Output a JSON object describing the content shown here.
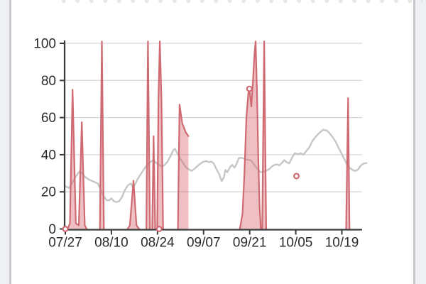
{
  "page": {
    "outer_bg": "#eef0f3",
    "card_bg": "#ffffff",
    "card_border": "#c9c6cc",
    "note_top_clipped_content": "faint dotted remnants of content scrolled above"
  },
  "chart_data": {
    "type": "line",
    "title": "",
    "xlabel": "",
    "ylabel": "",
    "grid": true,
    "legend": "none",
    "ylim": [
      0,
      100
    ],
    "x_unit": "days since 07/27",
    "x_visible_range_days": [
      0,
      90.3
    ],
    "x_ticks": [
      {
        "label": "07/27",
        "day": 0
      },
      {
        "label": "08/10",
        "day": 14
      },
      {
        "label": "08/24",
        "day": 28
      },
      {
        "label": "09/07",
        "day": 42
      },
      {
        "label": "09/21",
        "day": 56
      },
      {
        "label": "10/05",
        "day": 70
      },
      {
        "label": "10/19",
        "day": 84
      }
    ],
    "y_ticks": [
      {
        "label": "0",
        "value": 0
      },
      {
        "label": "20",
        "value": 20
      },
      {
        "label": "40",
        "value": 40
      },
      {
        "label": "60",
        "value": 60
      },
      {
        "label": "80",
        "value": 80
      },
      {
        "label": "100",
        "value": 100
      }
    ],
    "axis_color": "#3a3a3a",
    "grid_color": "#d8d8da",
    "label_color": "#2b2b2b",
    "label_font_px": 19,
    "series": [
      {
        "name": "smoothed-baseline",
        "type": "line",
        "color": "#c4c8c4",
        "width": 2.4,
        "points": [
          [
            0,
            23
          ],
          [
            0.6,
            22.5
          ],
          [
            1.1,
            22
          ],
          [
            1.7,
            23.5
          ],
          [
            2.6,
            26.5
          ],
          [
            3.5,
            29
          ],
          [
            4.3,
            31
          ],
          [
            5.2,
            30
          ],
          [
            6.0,
            28
          ],
          [
            7.3,
            26.5
          ],
          [
            8.6,
            25.5
          ],
          [
            9.9,
            24.5
          ],
          [
            10.8,
            21
          ],
          [
            11.7,
            17.5
          ],
          [
            12.5,
            15.5
          ],
          [
            13.4,
            15.5
          ],
          [
            14.0,
            16.5
          ],
          [
            14.7,
            15
          ],
          [
            15.5,
            14.5
          ],
          [
            16.4,
            15
          ],
          [
            17.3,
            17.5
          ],
          [
            18.1,
            21
          ],
          [
            19.0,
            23.5
          ],
          [
            19.9,
            24.5
          ],
          [
            20.5,
            22.5
          ],
          [
            21.2,
            24
          ],
          [
            22.0,
            27
          ],
          [
            22.9,
            29.5
          ],
          [
            24.0,
            32.5
          ],
          [
            25.1,
            35
          ],
          [
            26.1,
            36.5
          ],
          [
            26.8,
            37
          ],
          [
            27.6,
            35.5
          ],
          [
            28.5,
            34.5
          ],
          [
            29.4,
            33.5
          ],
          [
            30.2,
            34.5
          ],
          [
            31.1,
            36.5
          ],
          [
            32.0,
            39.5
          ],
          [
            32.8,
            42.5
          ],
          [
            33.3,
            43.2
          ],
          [
            34.1,
            40.5
          ],
          [
            35.0,
            37.5
          ],
          [
            35.8,
            35.5
          ],
          [
            36.7,
            33
          ],
          [
            37.6,
            32
          ],
          [
            38.4,
            31.3
          ],
          [
            39.3,
            32.5
          ],
          [
            40.2,
            34
          ],
          [
            41.0,
            35.2
          ],
          [
            41.9,
            36.2
          ],
          [
            42.8,
            36.6
          ],
          [
            43.6,
            36
          ],
          [
            44.3,
            36.3
          ],
          [
            45.0,
            35.5
          ],
          [
            45.8,
            32.5
          ],
          [
            46.6,
            30
          ],
          [
            47.5,
            25.8
          ],
          [
            48.2,
            28
          ],
          [
            48.6,
            31.8
          ],
          [
            49.2,
            30.5
          ],
          [
            50.1,
            33.5
          ],
          [
            50.7,
            34.5
          ],
          [
            51.4,
            33
          ],
          [
            52.0,
            35
          ],
          [
            52.7,
            38.2
          ],
          [
            53.6,
            38.3
          ],
          [
            54.4,
            37.8
          ],
          [
            55.3,
            37.2
          ],
          [
            56.4,
            37
          ],
          [
            57.4,
            34.5
          ],
          [
            58.5,
            32
          ],
          [
            59.4,
            30.5
          ],
          [
            60.2,
            30.8
          ],
          [
            61.1,
            31.5
          ],
          [
            62.0,
            32.3
          ],
          [
            62.8,
            33.8
          ],
          [
            63.7,
            34.6
          ],
          [
            64.4,
            34.8
          ],
          [
            65.0,
            34.2
          ],
          [
            65.7,
            35.5
          ],
          [
            66.5,
            37
          ],
          [
            67.2,
            36
          ],
          [
            68.0,
            35.3
          ],
          [
            68.9,
            38.5
          ],
          [
            69.7,
            40.8
          ],
          [
            70.6,
            40.2
          ],
          [
            71.5,
            40.8
          ],
          [
            72.3,
            40
          ],
          [
            73.2,
            42
          ],
          [
            74.1,
            44
          ],
          [
            75.1,
            47.5
          ],
          [
            76.2,
            50
          ],
          [
            77.3,
            52
          ],
          [
            78.4,
            53.5
          ],
          [
            79.5,
            53
          ],
          [
            80.3,
            51.5
          ],
          [
            81.2,
            49.5
          ],
          [
            82.1,
            47
          ],
          [
            82.9,
            44
          ],
          [
            83.8,
            41
          ],
          [
            84.6,
            38
          ],
          [
            85.5,
            35
          ],
          [
            86.4,
            33
          ],
          [
            87.2,
            31.8
          ],
          [
            88.1,
            31.2
          ],
          [
            88.9,
            32
          ],
          [
            89.8,
            34.3
          ],
          [
            90.7,
            35.3
          ],
          [
            91.5,
            35.5
          ]
        ]
      },
      {
        "name": "spikes",
        "type": "area-segments",
        "color": "#d06a72",
        "fill": "rgba(214,106,114,0.42)",
        "width": 2.2,
        "segments": [
          [
            [
              0.7,
              0
            ],
            [
              1.4,
              3
            ],
            [
              2.2,
              75
            ],
            [
              3.2,
              3
            ],
            [
              4.1,
              2
            ],
            [
              5.0,
              57.5
            ],
            [
              5.9,
              2
            ],
            [
              6.5,
              0
            ]
          ],
          [
            [
              10.5,
              0
            ],
            [
              11.1,
              101
            ],
            [
              11.7,
              0
            ]
          ],
          [
            [
              18.9,
              0
            ],
            [
              19.6,
              2
            ],
            [
              20.7,
              26
            ],
            [
              21.6,
              2
            ],
            [
              22.4,
              0
            ]
          ],
          [
            [
              24.6,
              0
            ],
            [
              25.1,
              101
            ],
            [
              25.7,
              0
            ]
          ],
          [
            [
              26.4,
              0
            ],
            [
              26.8,
              50
            ],
            [
              27.3,
              0
            ]
          ],
          [
            [
              27.9,
              0
            ],
            [
              28.3,
              70
            ],
            [
              28.7,
              101
            ],
            [
              29.2,
              70
            ],
            [
              29.7,
              0
            ]
          ],
          [
            [
              34.2,
              0
            ],
            [
              34.7,
              67
            ],
            [
              35.5,
              57
            ],
            [
              36.6,
              52
            ],
            [
              37.4,
              50
            ]
          ],
          [
            [
              53.0,
              0
            ],
            [
              53.8,
              8
            ],
            [
              54.4,
              30
            ],
            [
              55.0,
              60
            ],
            [
              55.6,
              73
            ],
            [
              55.9,
              75.5
            ],
            [
              56.5,
              66
            ],
            [
              57.0,
              80
            ],
            [
              57.5,
              95
            ],
            [
              57.8,
              101
            ],
            [
              58.2,
              75
            ],
            [
              58.6,
              40
            ],
            [
              59.0,
              12
            ],
            [
              59.4,
              0
            ]
          ],
          [
            [
              59.8,
              0
            ],
            [
              60.1,
              50
            ],
            [
              60.4,
              101
            ],
            [
              60.7,
              50
            ],
            [
              61.0,
              0
            ]
          ],
          [
            [
              85.3,
              0
            ],
            [
              85.9,
              70.5
            ],
            [
              86.3,
              0
            ]
          ]
        ],
        "markers": [
          {
            "day": 0,
            "value": 0
          },
          {
            "day": 28.5,
            "value": 0
          },
          {
            "day": 55.9,
            "value": 75.5
          },
          {
            "day": 70.2,
            "value": 28.5
          }
        ]
      }
    ]
  }
}
